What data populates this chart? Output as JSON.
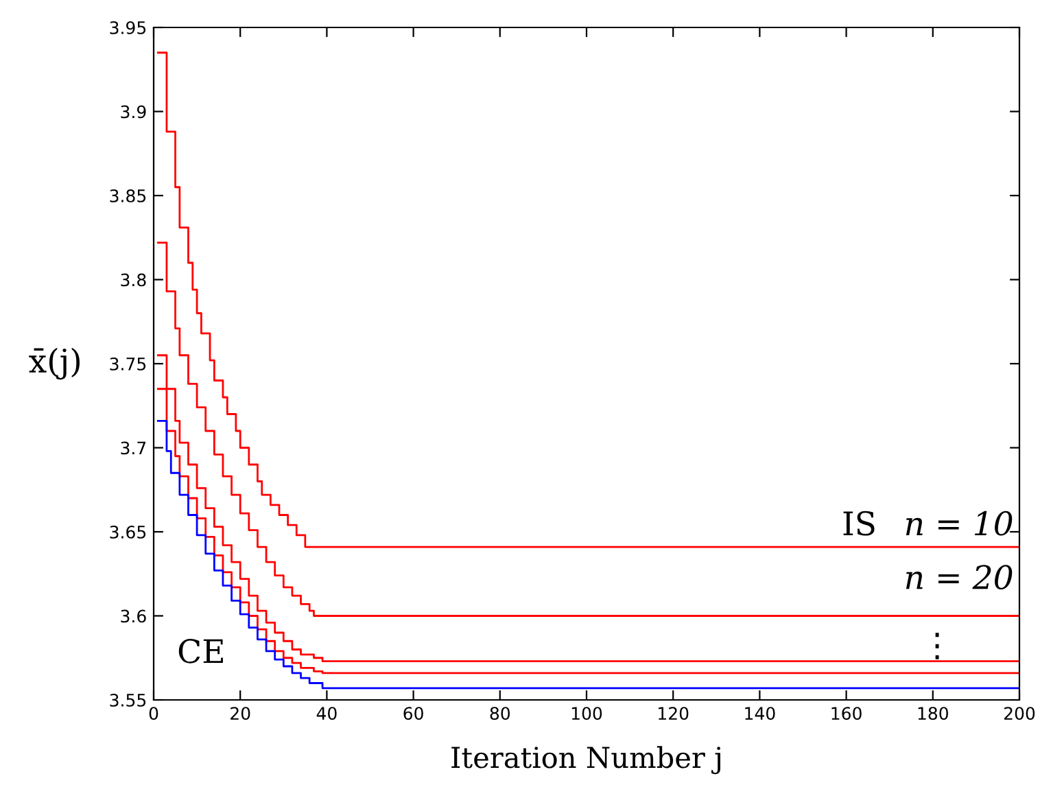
{
  "chart_data": {
    "type": "step",
    "xlabel": "Iteration Number j",
    "ylabel": "x̄(j)",
    "xlim": [
      0,
      200
    ],
    "ylim": [
      3.55,
      3.95
    ],
    "xticks": [
      0,
      20,
      40,
      60,
      80,
      100,
      120,
      140,
      160,
      180,
      200
    ],
    "yticks": [
      3.55,
      3.6,
      3.65,
      3.7,
      3.75,
      3.8,
      3.85,
      3.9,
      3.95
    ],
    "grid": false,
    "legend": false,
    "series": [
      {
        "color": "#ff0000",
        "x": [
          1,
          3,
          5,
          6,
          8,
          9,
          10,
          11,
          13,
          14,
          16,
          17,
          19,
          20,
          22,
          24,
          25,
          27,
          29,
          31,
          33,
          35,
          200
        ],
        "values": [
          3.935,
          3.888,
          3.855,
          3.831,
          3.81,
          3.794,
          3.78,
          3.768,
          3.752,
          3.74,
          3.73,
          3.72,
          3.71,
          3.7,
          3.69,
          3.68,
          3.672,
          3.666,
          3.66,
          3.654,
          3.648,
          3.641,
          3.641
        ]
      },
      {
        "color": "#ff0000",
        "x": [
          1,
          3,
          5,
          6,
          8,
          10,
          12,
          14,
          16,
          18,
          20,
          22,
          24,
          26,
          28,
          30,
          32,
          34,
          36,
          37,
          200
        ],
        "values": [
          3.822,
          3.793,
          3.771,
          3.755,
          3.738,
          3.724,
          3.71,
          3.696,
          3.683,
          3.672,
          3.661,
          3.651,
          3.641,
          3.632,
          3.624,
          3.617,
          3.612,
          3.607,
          3.603,
          3.6,
          3.6
        ]
      },
      {
        "color": "#ff0000",
        "x": [
          1,
          3,
          5,
          6,
          8,
          10,
          12,
          14,
          16,
          18,
          20,
          22,
          24,
          26,
          28,
          30,
          32,
          34,
          37,
          39,
          200
        ],
        "values": [
          3.755,
          3.735,
          3.716,
          3.703,
          3.69,
          3.676,
          3.664,
          3.653,
          3.642,
          3.632,
          3.622,
          3.612,
          3.603,
          3.596,
          3.59,
          3.585,
          3.58,
          3.577,
          3.575,
          3.573,
          3.573
        ]
      },
      {
        "color": "#ff0000",
        "x": [
          1,
          3,
          5,
          6,
          8,
          10,
          12,
          14,
          16,
          18,
          20,
          22,
          24,
          26,
          28,
          30,
          32,
          34,
          37,
          39,
          200
        ],
        "values": [
          3.735,
          3.71,
          3.695,
          3.683,
          3.67,
          3.658,
          3.647,
          3.636,
          3.626,
          3.617,
          3.608,
          3.6,
          3.592,
          3.585,
          3.579,
          3.575,
          3.572,
          3.569,
          3.567,
          3.566,
          3.566
        ]
      },
      {
        "color": "#0000ff",
        "x": [
          1,
          3,
          4,
          6,
          8,
          10,
          12,
          14,
          16,
          18,
          20,
          22,
          24,
          26,
          28,
          30,
          32,
          34,
          36,
          39,
          200
        ],
        "values": [
          3.716,
          3.698,
          3.685,
          3.672,
          3.66,
          3.648,
          3.637,
          3.627,
          3.618,
          3.609,
          3.601,
          3.593,
          3.586,
          3.579,
          3.574,
          3.57,
          3.566,
          3.563,
          3.56,
          3.557,
          3.557
        ]
      }
    ],
    "annotations": [
      "IS",
      "n = 10",
      "n = 20",
      "⋮",
      "CE"
    ]
  }
}
